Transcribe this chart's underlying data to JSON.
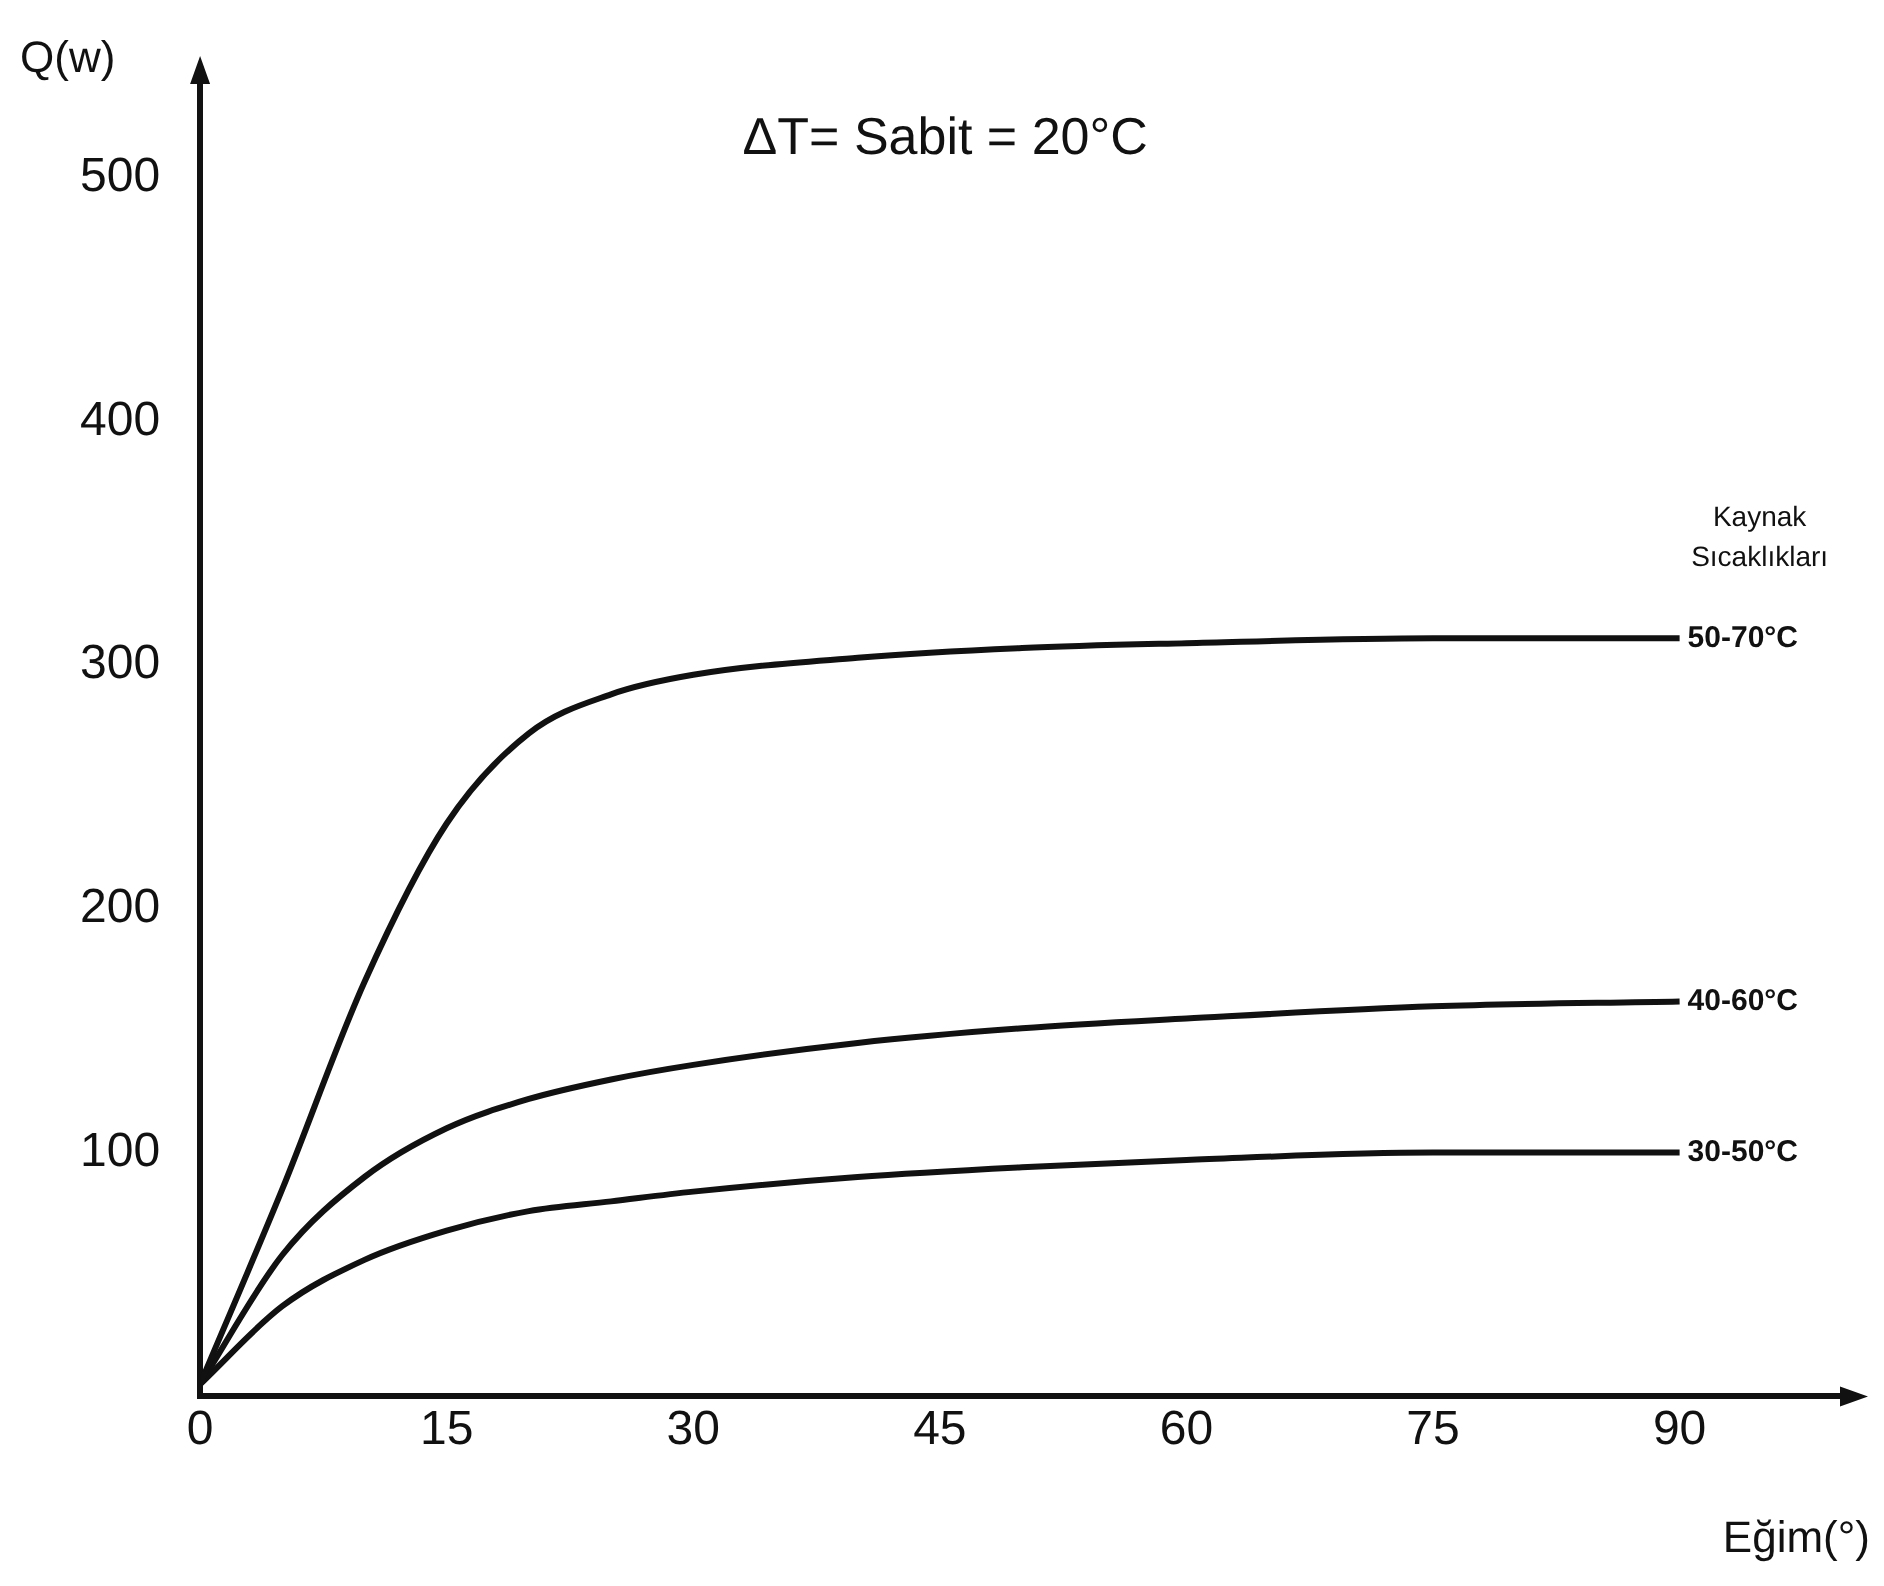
{
  "chart_data": {
    "type": "line",
    "annotations": [
      "ΔT= Sabit = 20°C"
    ],
    "xlabel": "Eğim(°)",
    "ylabel": "Q(w)",
    "legend_title": "Kaynak Sıcaklıkları",
    "x": [
      0,
      5,
      10,
      15,
      20,
      25,
      30,
      40,
      50,
      60,
      75,
      90
    ],
    "series": [
      {
        "name": "50-70°C",
        "color": "#111111",
        "values": [
          5,
          85,
          170,
          235,
          272,
          288,
          296,
          303,
          307,
          309,
          311,
          311
        ]
      },
      {
        "name": "40-60°C",
        "color": "#111111",
        "values": [
          5,
          58,
          90,
          110,
          122,
          130,
          136,
          145,
          151,
          155,
          160,
          162
        ]
      },
      {
        "name": "30-50°C",
        "color": "#111111",
        "values": [
          5,
          37,
          56,
          68,
          76,
          80,
          84,
          90,
          94,
          97,
          100,
          100
        ]
      }
    ],
    "xlim": [
      0,
      100
    ],
    "xticks": [
      0,
      15,
      30,
      45,
      60,
      75,
      90
    ],
    "ylim": [
      0,
      540
    ],
    "yticks": [
      100,
      200,
      300,
      400,
      500
    ],
    "grid": false,
    "legend": false,
    "marker": "none",
    "line_style": "solid"
  }
}
